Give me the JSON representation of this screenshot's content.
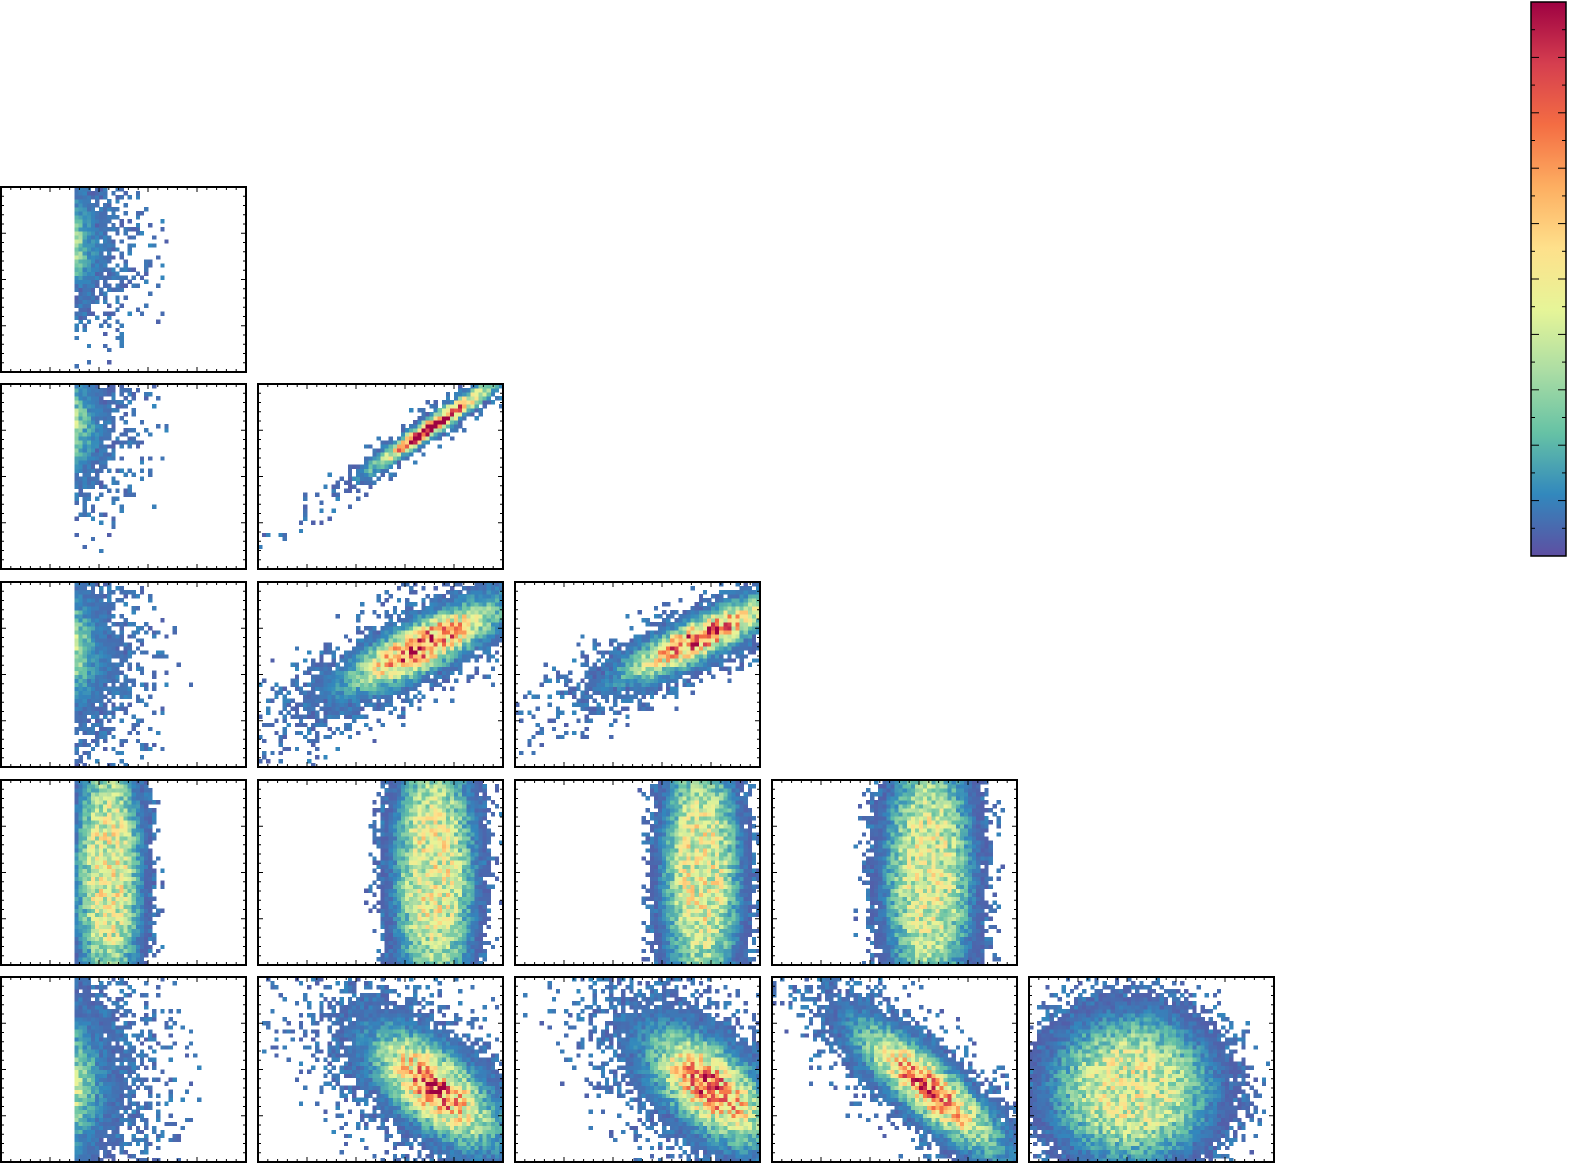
{
  "chart_data": {
    "type": "heatmap",
    "layout": "corner-plot",
    "title": "",
    "labels_printed": false,
    "colormap": "Spectral_r",
    "colormap_stops": [
      "#5e4fa2",
      "#3288bd",
      "#66c2a5",
      "#abdda4",
      "#e6f598",
      "#fee08b",
      "#fdae61",
      "#f46d43",
      "#d53e4f",
      "#9e0142"
    ],
    "empty_bin_color": "#ffffff",
    "colorbar": {
      "range": [
        0,
        1
      ],
      "placement": "right",
      "major_ticks": 10
    },
    "grid_rows": 5,
    "grid_cols": 5,
    "panels": [
      {
        "row": 0,
        "col": 0,
        "kind": "blob",
        "peak_xy": [
          0.17,
          0.72
        ],
        "spread_xy": [
          0.09,
          0.12
        ],
        "correlation": -0.1,
        "x_floor": 0.3,
        "tail": 0.14,
        "peak_level": 0.82
      },
      {
        "row": 1,
        "col": 0,
        "kind": "blob",
        "peak_xy": [
          0.17,
          0.8
        ],
        "spread_xy": [
          0.09,
          0.12
        ],
        "correlation": -0.1,
        "x_floor": 0.3,
        "tail": 0.14,
        "peak_level": 0.84
      },
      {
        "row": 1,
        "col": 1,
        "kind": "blob",
        "peak_xy": [
          0.72,
          0.78
        ],
        "spread_xy": [
          0.14,
          0.13
        ],
        "correlation": 0.97,
        "tail": 0.05,
        "peak_level": 1.0
      },
      {
        "row": 2,
        "col": 0,
        "kind": "blob",
        "peak_xy": [
          0.16,
          0.68
        ],
        "spread_xy": [
          0.1,
          0.15
        ],
        "correlation": -0.15,
        "x_floor": 0.3,
        "tail": 0.14,
        "peak_level": 0.8
      },
      {
        "row": 2,
        "col": 1,
        "kind": "blob",
        "peak_xy": [
          0.68,
          0.66
        ],
        "spread_xy": [
          0.17,
          0.13
        ],
        "correlation": 0.8,
        "tail": 0.08,
        "peak_level": 0.8
      },
      {
        "row": 2,
        "col": 2,
        "kind": "blob",
        "peak_xy": [
          0.76,
          0.7
        ],
        "spread_xy": [
          0.17,
          0.12
        ],
        "correlation": 0.85,
        "tail": 0.08,
        "peak_level": 0.82
      },
      {
        "row": 3,
        "col": 0,
        "kind": "band",
        "center_xy": [
          0.44,
          0.5
        ],
        "width": 0.34,
        "height": 0.98,
        "x_floor": 0.3,
        "peak_level": 0.45
      },
      {
        "row": 3,
        "col": 1,
        "kind": "band",
        "center_xy": [
          0.72,
          0.5
        ],
        "width": 0.42,
        "height": 0.98,
        "peak_level": 0.45
      },
      {
        "row": 3,
        "col": 2,
        "kind": "band",
        "center_xy": [
          0.76,
          0.5
        ],
        "width": 0.4,
        "height": 0.98,
        "peak_level": 0.45
      },
      {
        "row": 3,
        "col": 3,
        "kind": "band",
        "center_xy": [
          0.64,
          0.5
        ],
        "width": 0.46,
        "height": 0.98,
        "peak_level": 0.42
      },
      {
        "row": 4,
        "col": 0,
        "kind": "blob",
        "peak_xy": [
          0.18,
          0.4
        ],
        "spread_xy": [
          0.11,
          0.19
        ],
        "correlation": 0.05,
        "x_floor": 0.3,
        "tail": 0.12,
        "peak_level": 0.62
      },
      {
        "row": 4,
        "col": 1,
        "kind": "blob",
        "peak_xy": [
          0.72,
          0.4
        ],
        "spread_xy": [
          0.14,
          0.17
        ],
        "correlation": -0.65,
        "tail": 0.08,
        "peak_level": 0.72
      },
      {
        "row": 4,
        "col": 2,
        "kind": "blob",
        "peak_xy": [
          0.8,
          0.4
        ],
        "spread_xy": [
          0.14,
          0.17
        ],
        "correlation": -0.6,
        "tail": 0.08,
        "peak_level": 0.72
      },
      {
        "row": 4,
        "col": 3,
        "kind": "blob",
        "peak_xy": [
          0.64,
          0.4
        ],
        "spread_xy": [
          0.16,
          0.19
        ],
        "correlation": -0.85,
        "tail": 0.06,
        "peak_level": 0.76
      },
      {
        "row": 4,
        "col": 4,
        "kind": "band-horizontal",
        "center_xy": [
          0.42,
          0.4
        ],
        "width": 0.84,
        "height": 0.56,
        "peak_level": 0.42
      }
    ]
  }
}
